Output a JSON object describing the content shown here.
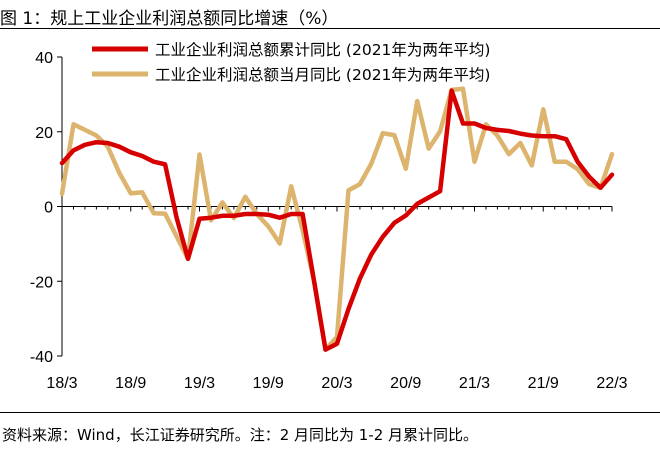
{
  "title": "图 1：规上工业企业利润总额同比增速（%）",
  "source": "资料来源：Wind，长江证券研究所。注：2 月同比为 1-2 月累计同比。",
  "colors": {
    "cumulative": "#d60000",
    "monthly": "#dcb46e"
  },
  "chart_data": {
    "type": "line",
    "title": "规上工业企业利润总额同比增速（%）",
    "xlabel": "",
    "ylabel": "",
    "ylim": [
      -40,
      40
    ],
    "yticks": [
      -40,
      -20,
      0,
      20,
      40
    ],
    "x": [
      "18/3",
      "18/4",
      "18/5",
      "18/6",
      "18/7",
      "18/8",
      "18/9",
      "18/10",
      "18/11",
      "18/12",
      "19/1",
      "19/2",
      "19/3",
      "19/4",
      "19/5",
      "19/6",
      "19/7",
      "19/8",
      "19/9",
      "19/10",
      "19/11",
      "19/12",
      "20/1",
      "20/2",
      "20/3",
      "20/4",
      "20/5",
      "20/6",
      "20/7",
      "20/8",
      "20/9",
      "20/10",
      "20/11",
      "20/12",
      "21/1",
      "21/2",
      "21/3",
      "21/4",
      "21/5",
      "21/6",
      "21/7",
      "21/8",
      "21/9",
      "21/10",
      "21/11",
      "21/12",
      "22/1",
      "22/2",
      "22/3"
    ],
    "xtick_labels": [
      "18/3",
      "18/9",
      "19/3",
      "19/9",
      "20/3",
      "20/9",
      "21/3",
      "21/9",
      "22/3"
    ],
    "series": [
      {
        "name": "工业企业利润总额累计同比 (2021年为两年平均)",
        "color": "#d60000",
        "values": [
          11.6,
          15.0,
          16.5,
          17.2,
          17.0,
          16.0,
          14.5,
          13.5,
          12.0,
          11.3,
          -3.0,
          -14.0,
          -3.3,
          -3.0,
          -2.5,
          -2.5,
          -2.0,
          -2.0,
          -2.2,
          -3.0,
          -2.0,
          -2.0,
          -20.0,
          -38.3,
          -36.7,
          -27.4,
          -19.3,
          -12.8,
          -8.1,
          -4.4,
          -2.4,
          0.7,
          2.4,
          4.1,
          31.0,
          22.2,
          22.2,
          21.0,
          20.5,
          20.2,
          19.5,
          19.0,
          18.8,
          18.8,
          18.0,
          12.0,
          8.0,
          5.0,
          8.5
        ]
      },
      {
        "name": "工业企业利润总额当月同比 (2021年为两年平均)",
        "color": "#dcb46e",
        "values": [
          3.4,
          22.0,
          20.5,
          19.0,
          16.0,
          9.0,
          3.5,
          3.8,
          -1.8,
          -1.9,
          -8.0,
          -14.0,
          13.9,
          -3.7,
          1.1,
          -3.1,
          2.6,
          -2.0,
          -5.3,
          -9.9,
          5.4,
          -6.3,
          -20.0,
          -38.3,
          -34.9,
          4.3,
          6.0,
          11.5,
          19.6,
          19.1,
          10.1,
          28.2,
          15.5,
          20.1,
          31.2,
          31.5,
          12.0,
          22.0,
          19.0,
          14.0,
          17.0,
          11.0,
          26.0,
          12.0,
          12.0,
          10.0,
          6.0,
          5.0,
          14.0
        ]
      }
    ]
  }
}
